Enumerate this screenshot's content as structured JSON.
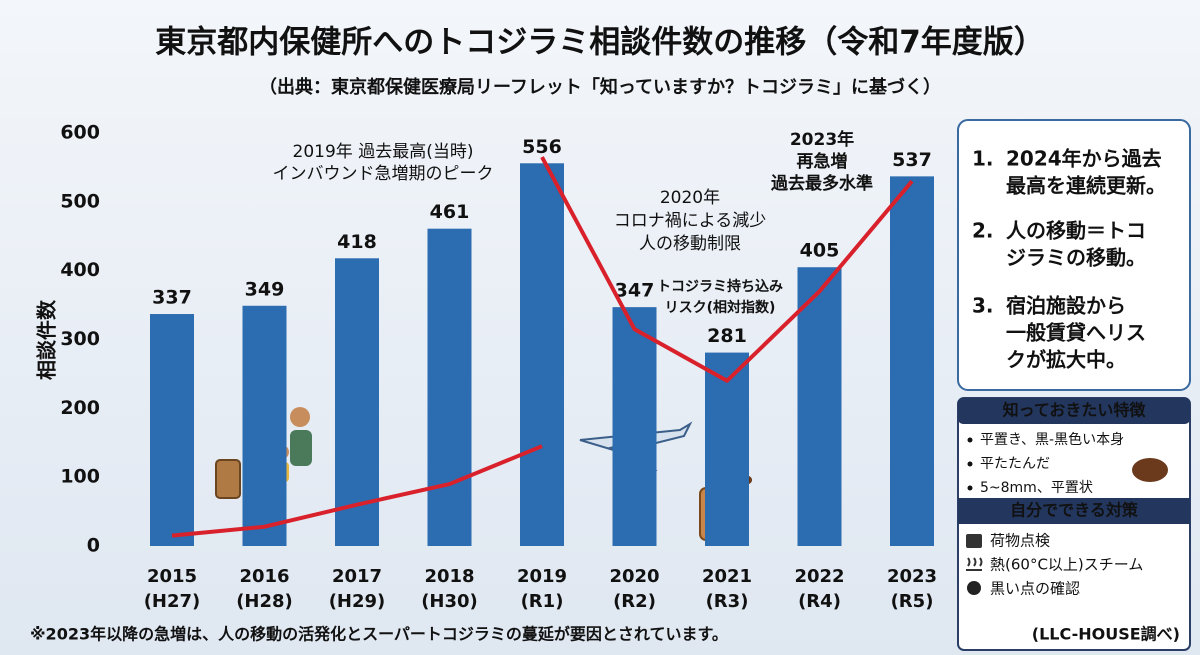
{
  "chart_data": {
    "type": "bar",
    "title": "東京都内保健所へのトコジラミ相談件数の推移（令和7年度版）",
    "subtitle": "（出典：東京都保健医療局リーフレット「知っていますか？トコジラミ」に基づく）",
    "y_label": "相談件数",
    "categories": [
      "2015",
      "2016",
      "2017",
      "2018",
      "2019",
      "2020",
      "2021",
      "2022",
      "2023"
    ],
    "category_sub": [
      "(H27)",
      "(H28)",
      "(H29)",
      "(H30)",
      "(R1)",
      "(R2)",
      "(R3)",
      "(R4)",
      "(R5)"
    ],
    "values": [
      337,
      349,
      418,
      461,
      556,
      347,
      281,
      405,
      537
    ],
    "color": "#2c6cb0",
    "ylim": [
      0,
      600
    ],
    "yticks": [
      0,
      100,
      200,
      300,
      400,
      500,
      600
    ],
    "grid": false,
    "risk_lines": [
      {
        "color": "#d9212c",
        "values": [
          15,
          28,
          60,
          90,
          145,
          null,
          null,
          null,
          null
        ]
      },
      {
        "color": "#d9212c",
        "values": [
          null,
          null,
          null,
          null,
          565,
          315,
          240,
          370,
          530
        ]
      }
    ],
    "risk_label": [
      "トコジラミ持ち込み",
      "リスク(相対指数)"
    ],
    "annotations": [
      {
        "lines": [
          "2019年 過去最高(当時)",
          "インバウンド急増期のピーク"
        ],
        "color": "#111"
      },
      {
        "lines": [
          "2020年",
          "コロナ禍による減少",
          "人の移動制限"
        ],
        "color": "#111"
      },
      {
        "lines": [
          "2023年",
          "再急増",
          "過去最多水準"
        ],
        "color": "#d9212c"
      }
    ],
    "footnote": "※2023年以降の急増は、人の移動の活発化とスーパートコジラミの蔓延が要因とされています。",
    "source": "(LLC-HOUSE調べ)"
  },
  "side_panel": {
    "items": [
      {
        "number": "1.",
        "lines": [
          "2024年から過去",
          "最高を連続更新。"
        ]
      },
      {
        "number": "2.",
        "lines": [
          "人の移動＝トコ",
          "ジラミの移動。"
        ]
      },
      {
        "number": "3.",
        "lines": [
          "宿泊施設から",
          "一般賃貸へリス",
          "クが拡大中。"
        ]
      }
    ]
  },
  "features": {
    "title": "知っておきたい特徴",
    "items": [
      "平置き、黒-黒色い本身",
      "平たたんだ",
      "5~8mm、平置状"
    ]
  },
  "measures": {
    "title": "自分でできる対策",
    "items": [
      "荷物点検",
      "熱(60°C以上)スチーム",
      "黒い点の確認"
    ]
  }
}
